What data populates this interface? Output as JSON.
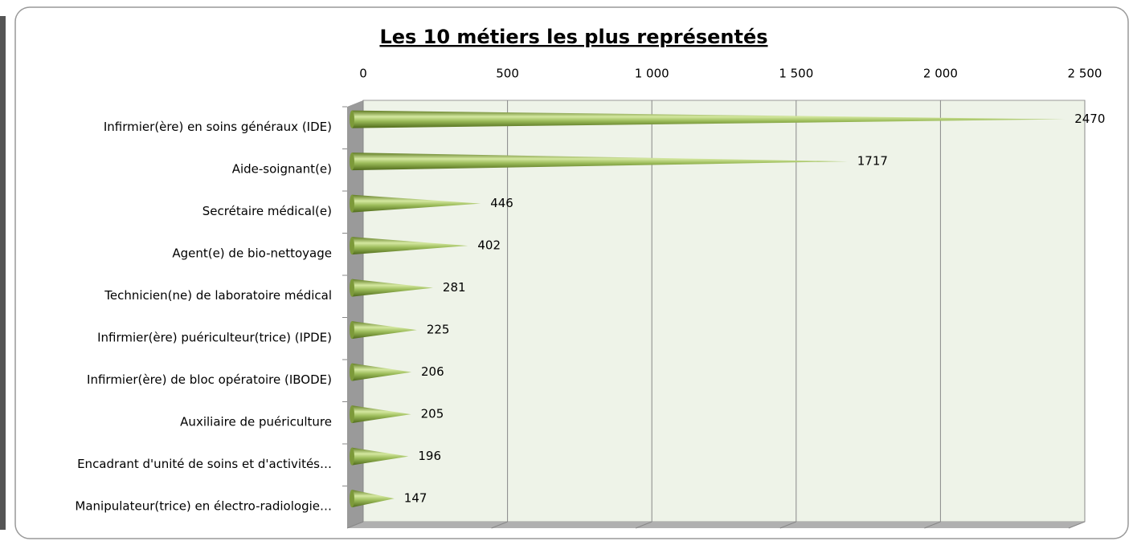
{
  "chart_data": {
    "type": "bar",
    "orientation": "horizontal",
    "title": "Les 10 métiers les plus représentés",
    "categories": [
      "Infirmier(ère) en soins généraux (IDE)",
      "Aide-soignant(e)",
      "Secrétaire médical(e)",
      "Agent(e) de bio-nettoyage",
      "Technicien(ne) de laboratoire médical",
      "Infirmier(ère) puériculteur(trice) (IPDE)",
      "Infirmier(ère) de bloc opératoire (IBODE)",
      "Auxiliaire de puériculture",
      "Encadrant d'unité de soins et d'activités…",
      "Manipulateur(trice) en électro-radiologie…"
    ],
    "values": [
      2470,
      1717,
      446,
      402,
      281,
      225,
      206,
      205,
      196,
      147
    ],
    "color": "#9bbb59",
    "xlim": [
      0,
      2500
    ],
    "xticks": [
      0,
      500,
      {
        "value": 1000,
        "label": "1 000"
      },
      {
        "value": 1500,
        "label": "1 500"
      },
      {
        "value": 2000,
        "label": "2 000"
      },
      {
        "value": 2500,
        "label": "2 500"
      }
    ],
    "grid": true
  }
}
